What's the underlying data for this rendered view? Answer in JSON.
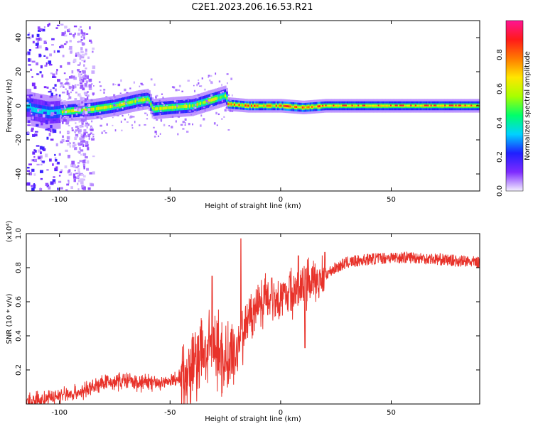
{
  "title": "C2E1.2023.206.16.53.R21",
  "chart_data": [
    {
      "type": "heatmap",
      "xlabel": "Height of straight line (km)",
      "ylabel": "Frequency (Hz)",
      "xlim": [
        -115,
        90
      ],
      "ylim": [
        -50,
        50
      ],
      "xticks": [
        -100,
        -50,
        0,
        50
      ],
      "yticks": [
        -40,
        -20,
        0,
        20,
        40
      ],
      "grid": false,
      "colorbar": {
        "label": "Normalized spectral amplitude",
        "range": [
          0,
          1
        ],
        "ticks": [
          0.0,
          0.2,
          0.4,
          0.6,
          0.8
        ],
        "colors": [
          "#f4f0ff",
          "#7e2bff",
          "#1f1fff",
          "#00d2ff",
          "#00ff6a",
          "#a8ff00",
          "#ffe600",
          "#ff7a00",
          "#ff1a1a",
          "#ff1493"
        ]
      },
      "centerline": [
        {
          "x": -113,
          "f": -2
        },
        {
          "x": -105,
          "f": -4
        },
        {
          "x": -95,
          "f": -3
        },
        {
          "x": -85,
          "f": -2
        },
        {
          "x": -75,
          "f": 0
        },
        {
          "x": -65,
          "f": 3
        },
        {
          "x": -60,
          "f": 4
        },
        {
          "x": -58,
          "f": -2
        },
        {
          "x": -50,
          "f": -1
        },
        {
          "x": -40,
          "f": 0
        },
        {
          "x": -30,
          "f": 4
        },
        {
          "x": -25,
          "f": 6
        },
        {
          "x": -24,
          "f": 1
        },
        {
          "x": -15,
          "f": 0
        },
        {
          "x": 0,
          "f": 0
        },
        {
          "x": 10,
          "f": -1
        },
        {
          "x": 20,
          "f": 0
        },
        {
          "x": 90,
          "f": 0
        }
      ]
    },
    {
      "type": "line",
      "xlabel": "Height of straight line (km)",
      "ylabel": "SNR (10 * v/v)",
      "y_multiplier": "(x10⁴)",
      "xlim": [
        -115,
        90
      ],
      "ylim": [
        0,
        1.0
      ],
      "xticks": [
        -100,
        -50,
        0,
        50
      ],
      "yticks": [
        0.2,
        0.4,
        0.6,
        0.8,
        1.0
      ],
      "grid": false,
      "color": "#e8322a",
      "series": [
        {
          "x": [
            -115,
            -110,
            -105,
            -100,
            -95,
            -90,
            -85,
            -80,
            -75,
            -70,
            -65,
            -60,
            -55,
            -50,
            -45,
            -40,
            -35,
            -30,
            -25,
            -20,
            -18,
            -15,
            -10,
            -5,
            0,
            5,
            10,
            15,
            20,
            25,
            30,
            40,
            50,
            60,
            70,
            80,
            90
          ],
          "values": [
            0.01,
            0.02,
            0.03,
            0.05,
            0.06,
            0.07,
            0.1,
            0.12,
            0.13,
            0.14,
            0.12,
            0.13,
            0.12,
            0.13,
            0.16,
            0.22,
            0.3,
            0.33,
            0.25,
            0.3,
            0.42,
            0.48,
            0.6,
            0.63,
            0.62,
            0.66,
            0.68,
            0.72,
            0.76,
            0.8,
            0.83,
            0.85,
            0.86,
            0.86,
            0.85,
            0.84,
            0.83
          ],
          "spikes": [
            {
              "x": -31,
              "y": 0.75
            },
            {
              "x": -18,
              "y": 0.97
            },
            {
              "x": -14,
              "y": 0.56
            },
            {
              "x": -4,
              "y": 0.74
            },
            {
              "x": 4,
              "y": 0.75
            },
            {
              "x": 8,
              "y": 0.87
            },
            {
              "x": 11,
              "y": 0.33
            },
            {
              "x": 20,
              "y": 0.89
            }
          ]
        }
      ]
    }
  ]
}
